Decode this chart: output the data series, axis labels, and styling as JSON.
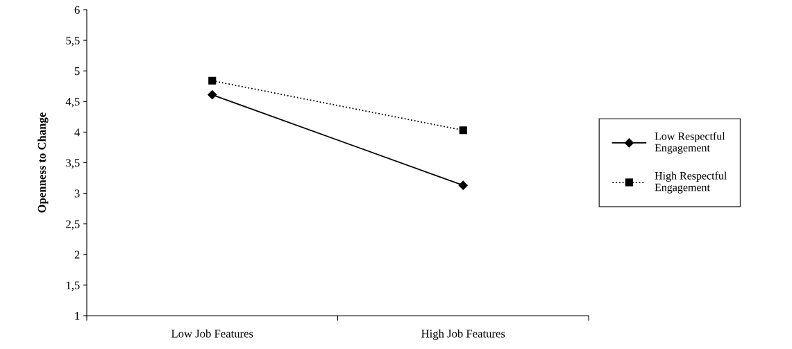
{
  "chart_data": {
    "type": "line",
    "ylabel": "Openness to Change",
    "categories": [
      "Low Job Features",
      "High Job Features"
    ],
    "series": [
      {
        "name": "Low Respectful Engagement",
        "color": "#000000",
        "values": [
          4.61,
          3.13
        ],
        "marker": "diamond",
        "line_style": "solid"
      },
      {
        "name": "High Respectful Engagement",
        "color": "#000000",
        "values": [
          4.84,
          4.03
        ],
        "marker": "square",
        "line_style": "dotted"
      }
    ],
    "ylim": [
      1,
      6
    ],
    "yticks": [
      1,
      {
        "value": 1.5,
        "label": "1,5"
      },
      2,
      {
        "value": 2.5,
        "label": "2,5"
      },
      3,
      {
        "value": 3.5,
        "label": "3,5"
      },
      4,
      {
        "value": 4.5,
        "label": "4,5"
      },
      5,
      {
        "value": 5.5,
        "label": "5,5"
      },
      6
    ],
    "grid": false,
    "legend": "right"
  }
}
